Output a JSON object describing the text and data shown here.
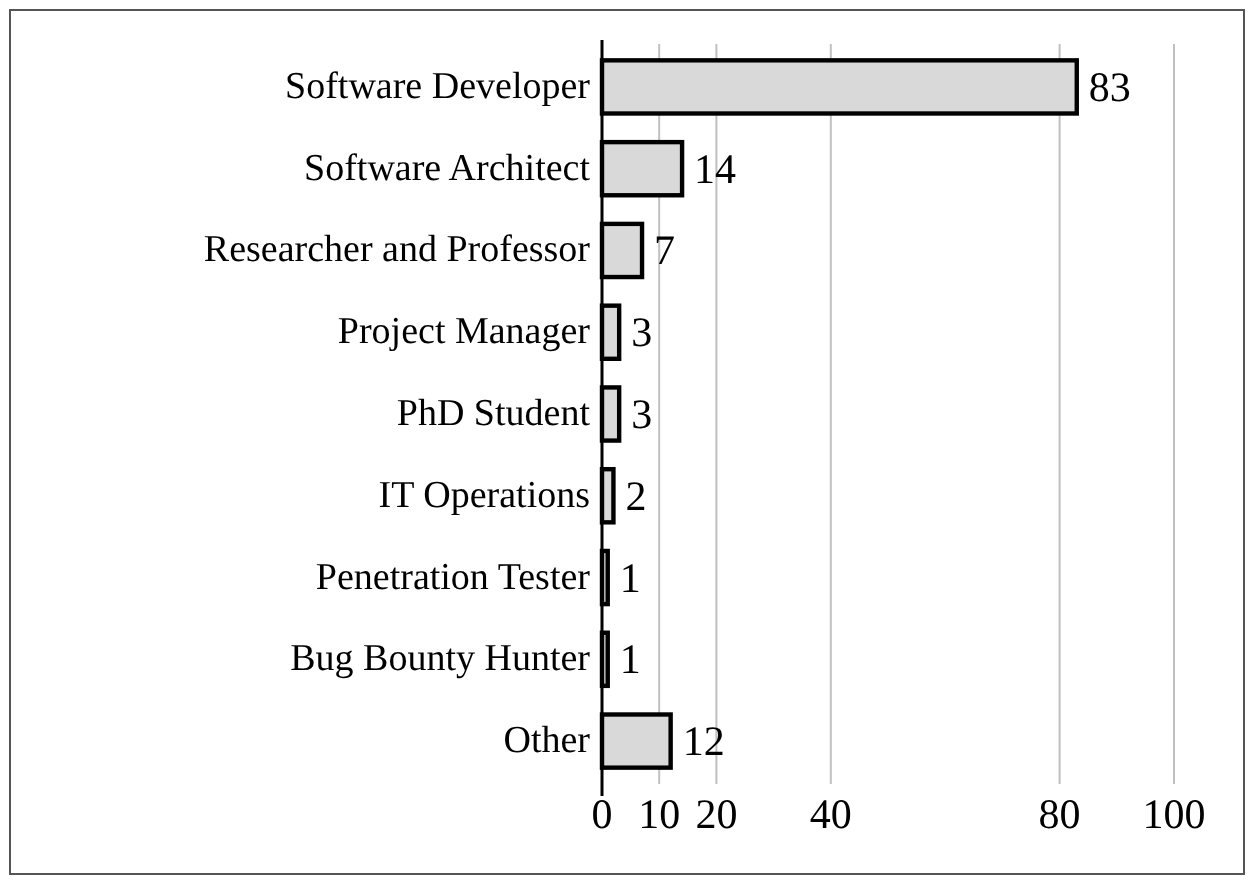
{
  "chart_data": {
    "type": "bar",
    "orientation": "horizontal",
    "categories": [
      "Software Developer",
      "Software Architect",
      "Researcher and Professor",
      "Project Manager",
      "PhD Student",
      "IT Operations",
      "Penetration Tester",
      "Bug Bounty Hunter",
      "Other"
    ],
    "values": [
      83,
      14,
      7,
      3,
      3,
      2,
      1,
      1,
      12
    ],
    "color": "#d9d9d9",
    "xlim": [
      0,
      100
    ],
    "xticks": [
      0,
      10,
      20,
      40,
      80,
      100
    ],
    "grid": "x",
    "data_labels": true
  }
}
